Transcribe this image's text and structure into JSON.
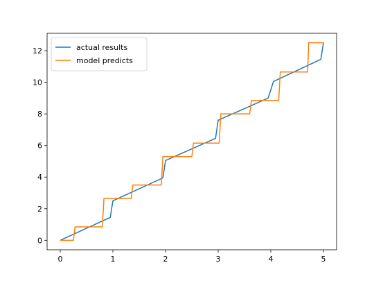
{
  "chart_data": {
    "type": "line",
    "title": "",
    "xlabel": "",
    "ylabel": "",
    "xlim": [
      -0.25,
      5.25
    ],
    "ylim": [
      -0.6,
      13.1
    ],
    "xticks": [
      0,
      1,
      2,
      3,
      4,
      5
    ],
    "yticks": [
      0,
      2,
      4,
      6,
      8,
      10,
      12
    ],
    "grid": false,
    "legend_position": "top-left",
    "series": [
      {
        "name": "actual results",
        "color": "#1f77b4",
        "x": [
          0,
          0.95,
          1.0,
          1.95,
          2.0,
          2.95,
          3.0,
          3.95,
          4.05,
          4.95,
          5.0
        ],
        "y": [
          0,
          1.45,
          2.5,
          3.95,
          5.05,
          6.45,
          7.6,
          9.0,
          10.05,
          11.45,
          12.5
        ]
      },
      {
        "name": "model predicts",
        "color": "#ff7f0e",
        "x": [
          0,
          0.25,
          0.28,
          0.8,
          0.83,
          1.35,
          1.38,
          1.92,
          1.95,
          2.5,
          2.53,
          3.02,
          3.05,
          3.6,
          3.63,
          4.15,
          4.18,
          4.7,
          4.72,
          5.0
        ],
        "y": [
          0,
          0,
          0.85,
          0.85,
          2.65,
          2.65,
          3.5,
          3.5,
          5.3,
          5.3,
          6.15,
          6.15,
          8.0,
          8.0,
          8.85,
          8.85,
          10.65,
          10.65,
          12.5,
          12.5
        ]
      }
    ]
  }
}
